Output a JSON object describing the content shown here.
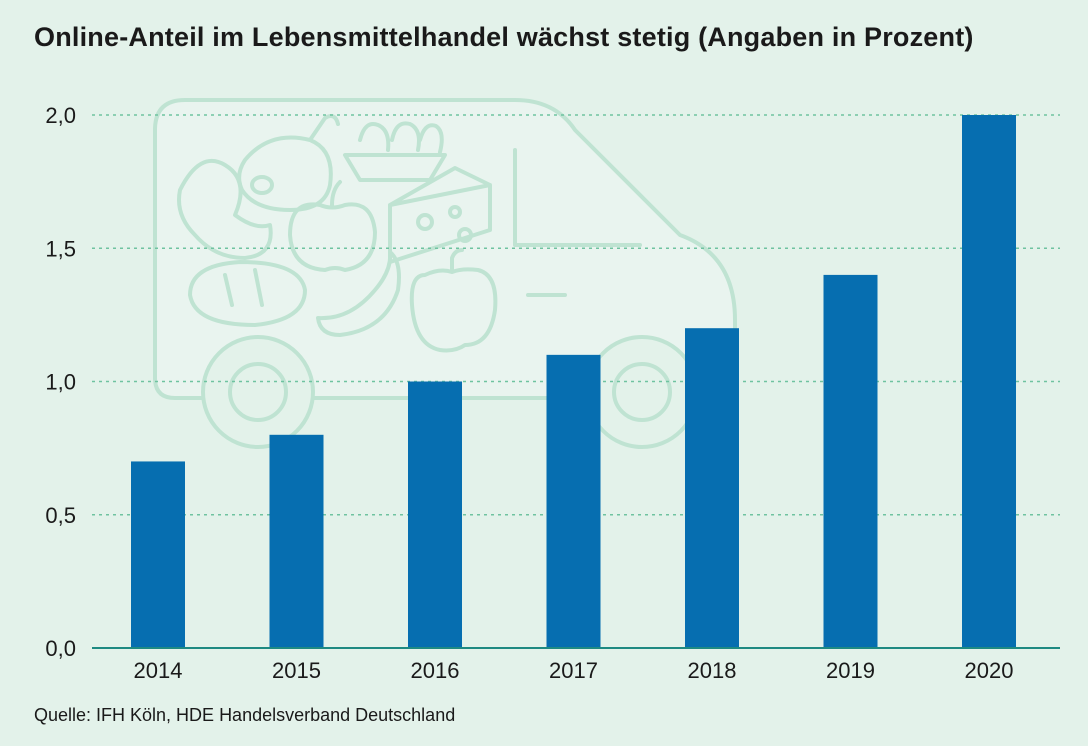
{
  "title": "Online-Anteil im Lebensmittelhandel wächst stetig (Angaben in Prozent)",
  "source": "Quelle: IFH Köln, HDE Handelsverband Deutschland",
  "colors": {
    "bar": "#066eb0",
    "background": "#e3f2ea",
    "grid": "#6fc3a0",
    "illustration": "#bfe3d2"
  },
  "chart_data": {
    "type": "bar",
    "title": "Online-Anteil im Lebensmittelhandel wächst stetig (Angaben in Prozent)",
    "categories": [
      "2014",
      "2015",
      "2016",
      "2017",
      "2018",
      "2019",
      "2020"
    ],
    "values": [
      0.7,
      0.8,
      1.0,
      1.1,
      1.2,
      1.4,
      2.0
    ],
    "ylim": [
      0,
      2.0
    ],
    "yticks": [
      "0,0",
      "0,5",
      "1,0",
      "1,5",
      "2,0"
    ],
    "grid": true,
    "legend": "none"
  }
}
